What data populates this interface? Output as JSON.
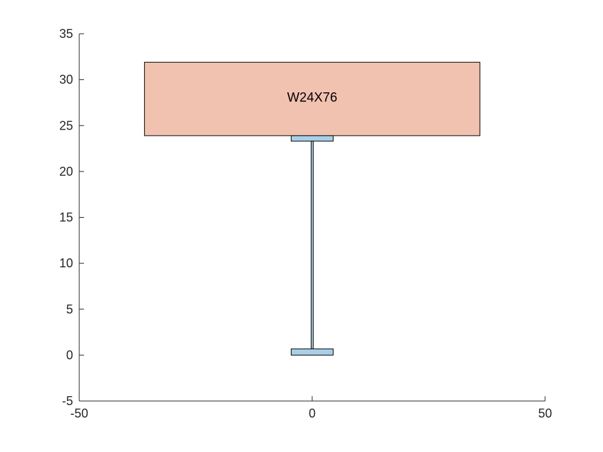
{
  "chart_data": {
    "type": "composite-section",
    "title": "",
    "xlabel": "",
    "ylabel": "",
    "xlim": [
      -50,
      50
    ],
    "ylim": [
      -5,
      35
    ],
    "xticks": [
      -50,
      0,
      50
    ],
    "yticks": [
      -5,
      0,
      5,
      10,
      15,
      20,
      25,
      30,
      35
    ],
    "grid": false,
    "legend": "none",
    "colors": {
      "axis": "#262626",
      "slab_fill": "#f2c2b0",
      "steel_fill": "#a9cfe8",
      "edge": "#000000"
    },
    "shapes": [
      {
        "name": "slab",
        "x": [
          -36,
          36
        ],
        "y": [
          23.9,
          31.9
        ]
      },
      {
        "name": "top-flange",
        "x": [
          -4.5,
          4.5
        ],
        "y": [
          23.3,
          23.9
        ]
      },
      {
        "name": "web",
        "x": [
          -0.22,
          0.22
        ],
        "y": [
          0.68,
          23.3
        ]
      },
      {
        "name": "bottom-flange",
        "x": [
          -4.5,
          4.5
        ],
        "y": [
          0,
          0.68
        ]
      }
    ],
    "annotation": {
      "text": "W24X76",
      "x": 0,
      "y": 28
    }
  }
}
